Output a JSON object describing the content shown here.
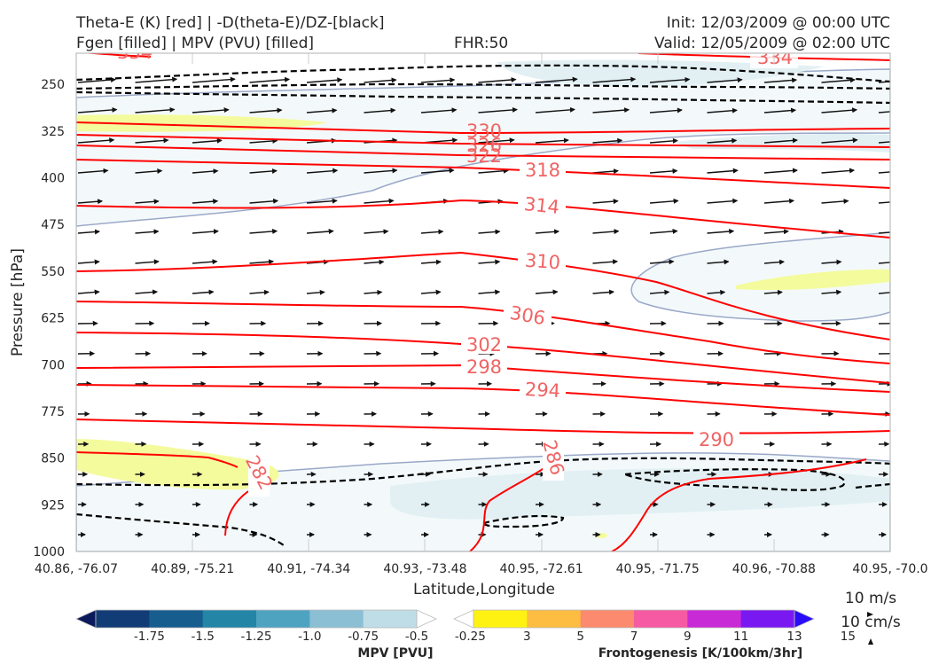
{
  "header": {
    "line1_left": "Theta-E (K) [red] | -D(theta-E)/DZ-[black]",
    "line2_left": "Fgen [filled] | MPV (PVU) [filled]",
    "fhr": "FHR:50",
    "init": "Init: 12/03/2009 @ 00:00 UTC",
    "valid": "Valid: 12/05/2009 @ 02:00 UTC"
  },
  "chart_data": {
    "type": "cross-section",
    "xlabel": "Latitude,Longitude",
    "ylabel": "Pressure [hPa]",
    "x_ticks": [
      "40.86, -76.07",
      "40.89, -75.21",
      "40.91, -74.34",
      "40.93, -73.48",
      "40.95, -72.61",
      "40.95, -71.75",
      "40.96, -70.88",
      "40.95, -70.0"
    ],
    "y_ticks": [
      250,
      325,
      400,
      475,
      550,
      625,
      700,
      775,
      850,
      925,
      1000
    ],
    "ylim": [
      1000,
      200
    ],
    "theta_e_contours": [
      {
        "value": 282,
        "label": "282"
      },
      {
        "value": 286,
        "label": "286"
      },
      {
        "value": 290,
        "label": "290"
      },
      {
        "value": 294,
        "label": "294"
      },
      {
        "value": 298,
        "label": "298"
      },
      {
        "value": 302,
        "label": "302"
      },
      {
        "value": 306,
        "label": "306"
      },
      {
        "value": 310,
        "label": "310"
      },
      {
        "value": 314,
        "label": "314"
      },
      {
        "value": 318,
        "label": "318"
      },
      {
        "value": 322,
        "label": "322"
      },
      {
        "value": 326,
        "label": "326"
      },
      {
        "value": 330,
        "label": "330"
      },
      {
        "value": 334,
        "label": "334"
      },
      {
        "value": 334,
        "label": "334"
      }
    ],
    "colorbars": [
      {
        "label": "MPV [PVU]",
        "tick_labels": [
          "-1.75",
          "-1.5",
          "-1.25",
          "-1.0",
          "-0.75",
          "-0.5",
          "-0.25"
        ],
        "colors": [
          "#0b1a5a",
          "#123c76",
          "#175d8e",
          "#2485a6",
          "#4ea3c1",
          "#8abfd4",
          "#bedde6",
          "#ffffff"
        ]
      },
      {
        "label": "Frontogenesis [K/100km/3hr]",
        "tick_labels": [
          "3",
          "5",
          "7",
          "9",
          "11",
          "13",
          "15"
        ],
        "colors": [
          "#ffffff",
          "#fef213",
          "#fcbd42",
          "#fb8a6e",
          "#f55aa2",
          "#c82ad6",
          "#7a18f2",
          "#2a0cf6"
        ]
      }
    ],
    "reference_vectors": {
      "wind": "10 m/s",
      "vertical": "10 cm/s"
    },
    "colors": {
      "theta_e": "#ff0000",
      "theta_e_label": "#f06464",
      "dtheta_dz": "#000000",
      "mpv_outline": "#9aa8c8"
    }
  }
}
